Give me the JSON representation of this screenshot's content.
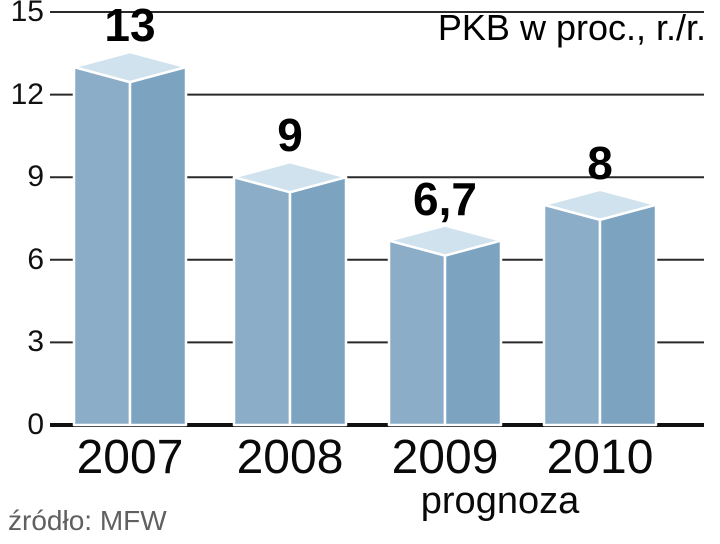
{
  "chart_data": {
    "type": "bar",
    "title": "PKB w proc., r./r.",
    "source": "źródło: MFW",
    "note": "prognoza",
    "categories": [
      "2007",
      "2008",
      "2009",
      "2010"
    ],
    "values": [
      13,
      9,
      6.7,
      8
    ],
    "value_labels": [
      "13",
      "9",
      "6,7",
      "8"
    ],
    "xlabel": "",
    "ylabel": "",
    "ylim": [
      0,
      15
    ],
    "yticks": [
      0,
      3,
      6,
      9,
      12,
      15
    ],
    "ytick_labels_top_to_bottom": [
      "15",
      "12",
      "9",
      "6",
      "3",
      "0"
    ],
    "grid": true,
    "legend": false,
    "colors": {
      "bar_front_left": "#8badc8",
      "bar_front_right": "#7ca4c0",
      "bar_top": "#cfe2ee",
      "bar_outline": "#ffffff",
      "grid_line": "#2a2a2a",
      "axis_line": "#111111",
      "text": "#111111",
      "source_text": "#606060",
      "background": "#ffffff"
    }
  }
}
